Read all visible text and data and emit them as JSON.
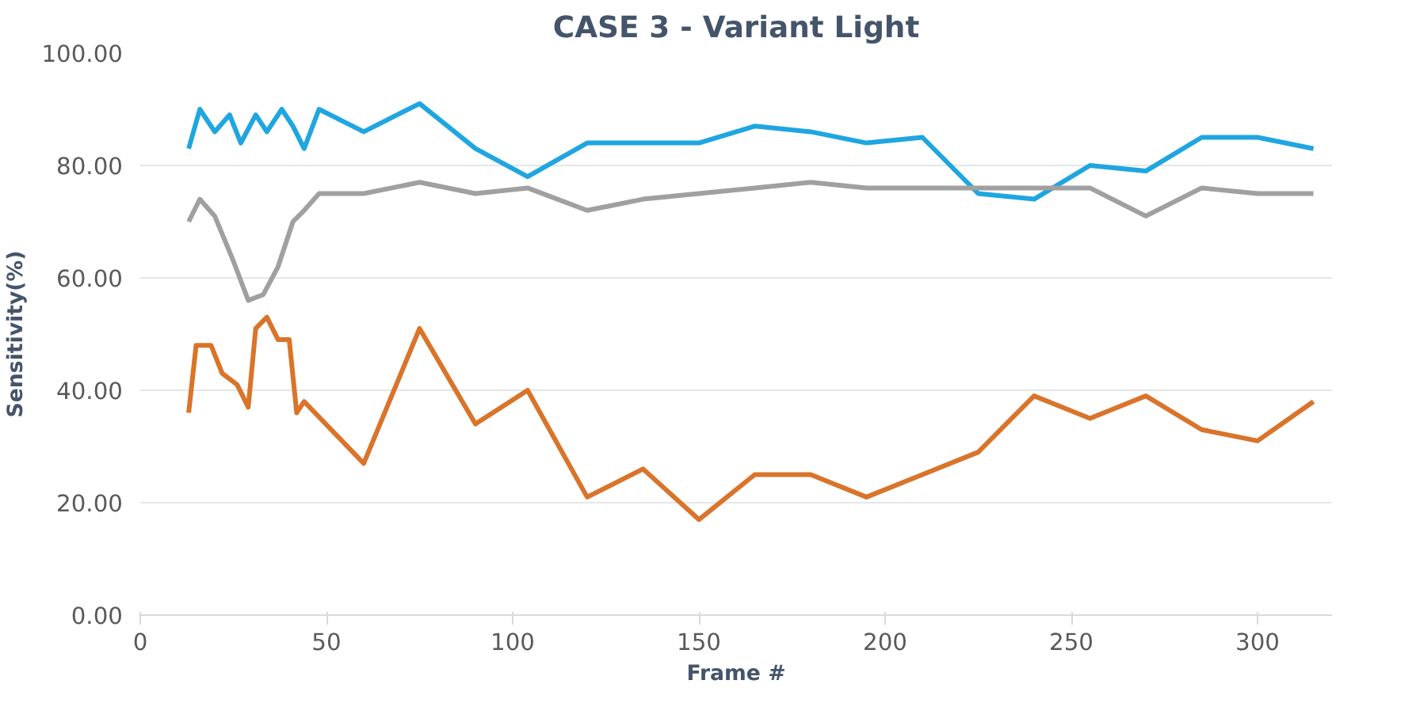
{
  "chart_data": {
    "type": "line",
    "title": "CASE 3 - Variant Light",
    "xlabel": "Frame #",
    "ylabel": "Sensitivity(%)",
    "xlim": [
      0,
      320
    ],
    "xticks": [
      0,
      50,
      100,
      150,
      200,
      250,
      300
    ],
    "ylim": [
      0,
      100
    ],
    "yticks": [
      {
        "value": 0,
        "label": "0.00"
      },
      {
        "value": 20,
        "label": "20.00"
      },
      {
        "value": 40,
        "label": "40.00"
      },
      {
        "value": 60,
        "label": "60.00"
      },
      {
        "value": 80,
        "label": "80.00"
      },
      {
        "value": 100,
        "label": "100.00"
      }
    ],
    "grid": "y",
    "series": [
      {
        "color": "#1fa6e0",
        "x": [
          13,
          16,
          20,
          24,
          27,
          31,
          34,
          38,
          41,
          44,
          48,
          60,
          75,
          90,
          104,
          120,
          135,
          150,
          165,
          180,
          195,
          210,
          225,
          240,
          255,
          270,
          285,
          300,
          315
        ],
        "values": [
          83,
          90,
          86,
          89,
          84,
          89,
          86,
          90,
          87,
          83,
          90,
          86,
          91,
          83,
          78,
          84,
          84,
          84,
          87,
          86,
          84,
          85,
          75,
          74,
          80,
          79,
          85,
          85,
          83
        ]
      },
      {
        "color": "#a0a0a0",
        "x": [
          13,
          16,
          20,
          25,
          29,
          33,
          37,
          41,
          44,
          48,
          60,
          75,
          90,
          104,
          120,
          135,
          150,
          165,
          180,
          195,
          210,
          225,
          240,
          255,
          270,
          285,
          300,
          315
        ],
        "values": [
          70,
          74,
          71,
          63,
          56,
          57,
          62,
          70,
          72,
          75,
          75,
          77,
          75,
          76,
          72,
          74,
          75,
          76,
          77,
          76,
          76,
          76,
          76,
          76,
          71,
          76,
          75,
          75
        ]
      },
      {
        "color": "#d9742a",
        "x": [
          13,
          15,
          19,
          22,
          26,
          29,
          31,
          34,
          37,
          40,
          42,
          44,
          60,
          75,
          90,
          104,
          120,
          135,
          150,
          165,
          180,
          195,
          210,
          225,
          240,
          255,
          270,
          285,
          300,
          315
        ],
        "values": [
          36,
          48,
          48,
          43,
          41,
          37,
          51,
          53,
          49,
          49,
          36,
          38,
          27,
          51,
          34,
          40,
          21,
          26,
          17,
          25,
          25,
          21,
          25,
          29,
          39,
          35,
          39,
          33,
          31,
          38
        ]
      }
    ]
  }
}
